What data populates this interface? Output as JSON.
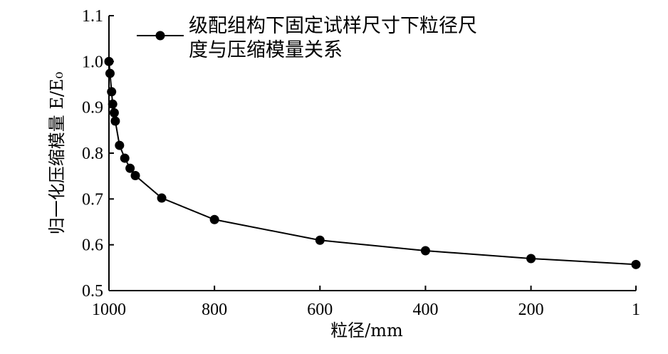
{
  "chart_data": {
    "type": "line",
    "x_label": "粒径/mm",
    "y_label": "归一化压缩模量 E/E₀",
    "x": [
      1000,
      998,
      995,
      993,
      990,
      988,
      980,
      970,
      960,
      950,
      900,
      800,
      600,
      400,
      200,
      1
    ],
    "series": [
      {
        "name": "级配组构下固定试样尺寸下粒径尺度与压缩模量关系",
        "color": "#000000",
        "values": [
          1.0,
          0.974,
          0.934,
          0.907,
          0.888,
          0.87,
          0.817,
          0.789,
          0.767,
          0.751,
          0.702,
          0.655,
          0.61,
          0.587,
          0.57,
          0.557
        ]
      }
    ],
    "xlim": [
      1000,
      1
    ],
    "xticks": [
      1000,
      800,
      600,
      400,
      200,
      1
    ],
    "ylim": [
      0.5,
      1.1
    ],
    "yticks": [
      0.5,
      0.6,
      0.7,
      0.8,
      0.9,
      {
        "value": 1,
        "label": "1.0"
      },
      1.1
    ],
    "grid": false
  }
}
